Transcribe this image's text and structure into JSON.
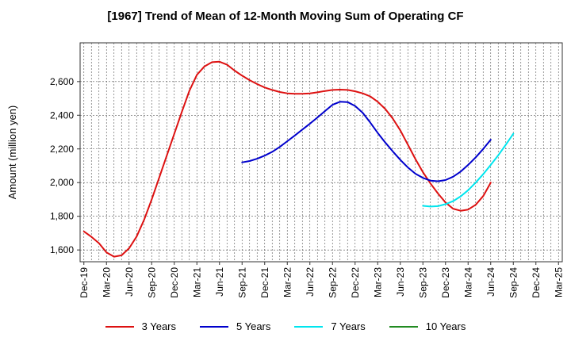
{
  "chart_data": {
    "type": "line",
    "title": "[1967]  Trend of Mean of 12-Month Moving Sum of Operating CF",
    "xlabel": "",
    "ylabel": "Amount (million yen)",
    "ylim": [
      1530,
      2830
    ],
    "yticks": [
      1600,
      1800,
      2000,
      2200,
      2400,
      2600
    ],
    "ytick_labels": [
      "1,600",
      "1,800",
      "2,000",
      "2,200",
      "2,400",
      "2,600"
    ],
    "x_start": "Dec-19",
    "x_months": 64,
    "xticks": [
      0,
      3,
      6,
      9,
      12,
      15,
      18,
      21,
      24,
      27,
      30,
      33,
      36,
      39,
      42,
      45,
      48,
      51,
      54,
      57,
      60,
      63
    ],
    "xtick_labels": [
      "Dec-19",
      "Mar-20",
      "Jun-20",
      "Sep-20",
      "Dec-20",
      "Mar-21",
      "Jun-21",
      "Sep-21",
      "Dec-21",
      "Mar-22",
      "Jun-22",
      "Sep-22",
      "Dec-22",
      "Mar-23",
      "Jun-23",
      "Sep-23",
      "Dec-23",
      "Mar-24",
      "Jun-24",
      "Sep-24",
      "Dec-24",
      "Mar-25"
    ],
    "grid": true,
    "legend_position": "bottom",
    "series": [
      {
        "name": "3 Years",
        "color": "#dd1111",
        "x_start_index": 0,
        "values": [
          1710,
          1678,
          1640,
          1585,
          1560,
          1568,
          1610,
          1680,
          1780,
          1900,
          2030,
          2160,
          2290,
          2420,
          2545,
          2640,
          2690,
          2715,
          2718,
          2700,
          2665,
          2635,
          2608,
          2585,
          2565,
          2550,
          2538,
          2530,
          2527,
          2527,
          2530,
          2536,
          2544,
          2550,
          2552,
          2550,
          2542,
          2530,
          2512,
          2480,
          2437,
          2380,
          2310,
          2225,
          2140,
          2062,
          1995,
          1935,
          1882,
          1845,
          1833,
          1840,
          1868,
          1920,
          2000
        ]
      },
      {
        "name": "5 Years",
        "color": "#0000cc",
        "x_start_index": 21,
        "values": [
          2120,
          2128,
          2142,
          2160,
          2183,
          2212,
          2246,
          2280,
          2315,
          2350,
          2387,
          2425,
          2462,
          2480,
          2478,
          2455,
          2415,
          2357,
          2295,
          2238,
          2185,
          2135,
          2090,
          2053,
          2028,
          2012,
          2008,
          2015,
          2035,
          2065,
          2105,
          2150,
          2200,
          2255
        ]
      },
      {
        "name": "7 Years",
        "color": "#00e5ee",
        "x_start_index": 45,
        "values": [
          1862,
          1858,
          1860,
          1872,
          1890,
          1918,
          1955,
          2000,
          2050,
          2105,
          2162,
          2225,
          2290
        ]
      },
      {
        "name": "10 Years",
        "color": "#228b22",
        "x_start_index": 0,
        "values": []
      }
    ]
  }
}
